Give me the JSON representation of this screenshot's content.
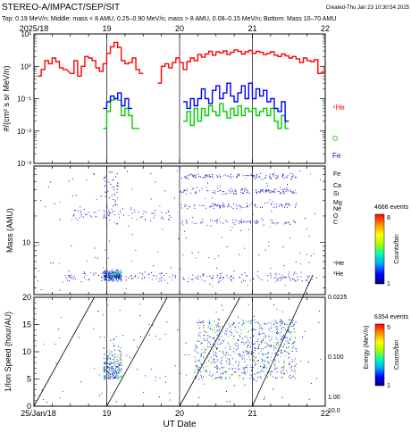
{
  "header": {
    "title": "STEREO-A/IMPACT/SEP/SIT",
    "created": "Created-Thu Jan 23 10:30:54 2025",
    "subtitle": "Top: 0.19 MeV/n; Middle: mass < 8 AMU, 0.25–0.90 MeV/n; mass > 8 AMU, 0.08–0.15 MeV/n; Bottom: Mass 10–70 AMU"
  },
  "x_axis": {
    "top_tick_labels": [
      "2025/18",
      "19",
      "20",
      "21",
      "22"
    ],
    "bottom_tick_labels": [
      "25/Jan/18",
      "19",
      "20",
      "21",
      "22"
    ],
    "xlabel": "UT Date"
  },
  "colors": {
    "He": "#ff0000",
    "O": "#00cc00",
    "Fe": "#0000ff",
    "points": "#0000aa"
  },
  "chart_data": [
    {
      "type": "line",
      "ylabel": "#/(cm² s sr MeV/n)",
      "yscale": "log",
      "ylim": [
        0.001,
        10
      ],
      "xlim": [
        18,
        22
      ],
      "y_tick_labels": [
        "10⁻³",
        "10⁻²",
        "10⁻¹",
        "10⁰",
        "10¹"
      ],
      "series": [
        {
          "name": "⁴He",
          "color": "#ff0000",
          "x": [
            18.05,
            18.1,
            18.15,
            18.2,
            18.25,
            18.3,
            18.35,
            18.4,
            18.5,
            18.55,
            18.6,
            18.65,
            18.7,
            18.75,
            18.8,
            18.85,
            18.9,
            18.95,
            19.0,
            19.05,
            19.1,
            19.15,
            19.2,
            19.25,
            19.3,
            19.35,
            19.4,
            19.45,
            19.5,
            19.7,
            19.75,
            19.8,
            19.85,
            19.9,
            19.95,
            20.0,
            20.05,
            20.1,
            20.15,
            20.2,
            20.25,
            20.3,
            20.35,
            20.4,
            20.45,
            20.5,
            20.55,
            20.6,
            20.65,
            20.7,
            20.75,
            20.8,
            20.85,
            20.9,
            20.95,
            21.0,
            21.05,
            21.1,
            21.15,
            21.2,
            21.25,
            21.3,
            21.35,
            21.4,
            21.45,
            21.5,
            21.55,
            21.6,
            21.65,
            21.7,
            21.75,
            21.8,
            21.85,
            21.9,
            21.95
          ],
          "values": [
            0.5,
            0.8,
            1.5,
            1.2,
            1.8,
            1.4,
            0.9,
            0.8,
            0.6,
            1.5,
            0.5,
            1.0,
            2.0,
            1.8,
            1.5,
            0.9,
            0.7,
            1.2,
            2.5,
            4.0,
            5.5,
            3.8,
            1.5,
            1.2,
            1.3,
            1.8,
            0.8,
            0.6,
            null,
            0.3,
            1.0,
            1.2,
            0.9,
            1.3,
            1.8,
            1.3,
            0.8,
            1.4,
            1.8,
            1.5,
            2.3,
            1.9,
            2.4,
            2.9,
            2.2,
            2.8,
            2.6,
            3.0,
            2.3,
            2.7,
            3.2,
            2.9,
            2.4,
            2.8,
            3.1,
            2.5,
            2.9,
            2.7,
            2.3,
            2.5,
            2.8,
            2.2,
            2.0,
            2.4,
            2.1,
            1.8,
            2.0,
            1.7,
            1.3,
            1.8,
            1.5,
            1.4,
            1.6,
            0.6,
            0.65
          ]
        },
        {
          "name": "O",
          "color": "#00cc00",
          "x": [
            18.95,
            19.0,
            19.05,
            19.1,
            19.15,
            19.2,
            19.25,
            19.3,
            19.35,
            19.4,
            20.05,
            20.1,
            20.15,
            20.2,
            20.25,
            20.3,
            20.35,
            20.4,
            20.45,
            20.5,
            20.55,
            20.6,
            20.65,
            20.7,
            20.75,
            20.8,
            20.85,
            20.9,
            20.95,
            21.0,
            21.05,
            21.1,
            21.15,
            21.2,
            21.25,
            21.3,
            21.35,
            21.4,
            21.45
          ],
          "values": [
            0.012,
            0.04,
            0.09,
            0.1,
            0.09,
            0.03,
            0.05,
            0.03,
            0.012,
            0.012,
            0.02,
            0.04,
            0.015,
            0.05,
            0.02,
            0.05,
            0.03,
            0.06,
            0.04,
            0.03,
            0.07,
            0.04,
            0.025,
            0.05,
            0.03,
            0.06,
            0.03,
            0.05,
            0.04,
            0.05,
            0.03,
            0.04,
            0.05,
            0.03,
            0.05,
            0.02,
            0.012,
            0.03,
            0.012
          ]
        },
        {
          "name": "Fe",
          "color": "#0000ff",
          "x": [
            18.95,
            19.0,
            19.05,
            19.1,
            19.15,
            19.2,
            19.25,
            19.3,
            20.05,
            20.1,
            20.15,
            20.2,
            20.25,
            20.3,
            20.35,
            20.4,
            20.45,
            20.5,
            20.55,
            20.6,
            20.65,
            20.7,
            20.75,
            20.8,
            20.85,
            20.9,
            20.95,
            21.0,
            21.05,
            21.1,
            21.15,
            21.2,
            21.25,
            21.3,
            21.35,
            21.4,
            21.45
          ],
          "values": [
            0.05,
            0.08,
            0.12,
            0.1,
            0.15,
            0.06,
            0.1,
            0.05,
            0.08,
            0.05,
            0.1,
            0.06,
            0.1,
            0.2,
            0.1,
            0.07,
            0.18,
            0.25,
            0.1,
            0.15,
            0.3,
            0.12,
            0.08,
            0.15,
            0.25,
            0.1,
            0.3,
            0.1,
            0.2,
            0.12,
            0.18,
            0.08,
            0.1,
            0.05,
            0.04,
            0.08,
            0.02
          ]
        }
      ],
      "right_labels": [
        "⁴He",
        "O",
        "Fe"
      ]
    },
    {
      "type": "scatter",
      "ylabel": "Mass (AMU)",
      "yscale": "log",
      "ylim": [
        2.5,
        75
      ],
      "xlim": [
        18,
        22
      ],
      "y_tick_labels": [
        "10"
      ],
      "element_labels": [
        "Fe",
        "Ca",
        "Si",
        "Mg",
        "Ne",
        "O",
        "C",
        "⁴He",
        "³He"
      ],
      "colorbar": {
        "events": "4666 events",
        "label": "Counts/bin",
        "max": "8",
        "min": "1"
      }
    },
    {
      "type": "scatter",
      "ylabel": "1/Ion Speed (hour/AU)",
      "ylim": [
        0,
        20
      ],
      "xlim": [
        18,
        22
      ],
      "y_tick_labels": [
        "0",
        "5",
        "10",
        "15",
        "20"
      ],
      "right_axis": {
        "label": "Energy (MeV/n)",
        "tick_labels": [
          "0.0225",
          "0.100",
          "1.00",
          "10.0"
        ]
      },
      "colorbar": {
        "events": "6354 events",
        "label": "Counts/bin",
        "max": "5",
        "min": "1"
      }
    }
  ]
}
